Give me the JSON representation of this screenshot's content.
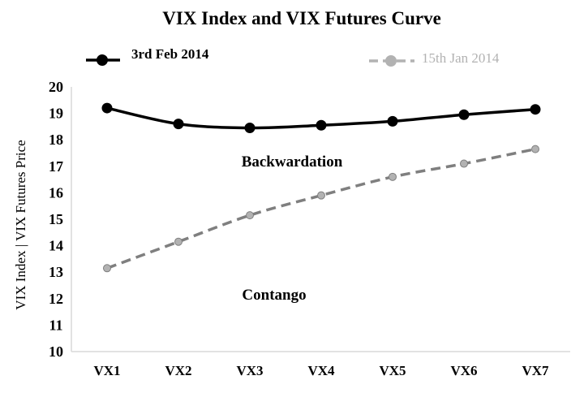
{
  "chart_data": {
    "type": "line",
    "title": "VIX Index and VIX Futures Curve",
    "xlabel": "",
    "ylabel": "VIX Index | VIX Futures Price",
    "categories": [
      "VX1",
      "VX2",
      "VX3",
      "VX4",
      "VX5",
      "VX6",
      "VX7"
    ],
    "ylim": [
      10,
      20
    ],
    "yticks": [
      "10",
      "11",
      "12",
      "13",
      "14",
      "15",
      "16",
      "17",
      "18",
      "19",
      "20"
    ],
    "grid": false,
    "legend_position": "top",
    "series": [
      {
        "name": "3rd Feb 2014",
        "values": [
          19.2,
          18.6,
          18.45,
          18.55,
          18.7,
          18.95,
          19.15
        ],
        "color": "#000000",
        "line_style": "solid",
        "marker_color": "#000000"
      },
      {
        "name": "15th Jan 2014",
        "values": [
          13.15,
          14.15,
          15.15,
          15.9,
          16.6,
          17.1,
          17.65
        ],
        "color": "#7f7f7f",
        "line_style": "dashed",
        "marker_color": "#b2b2b2"
      }
    ],
    "annotations": [
      {
        "text": "Backwardation"
      },
      {
        "text": "Contango"
      }
    ],
    "legend_colors": [
      "#000000",
      "#b2b2b2"
    ]
  }
}
